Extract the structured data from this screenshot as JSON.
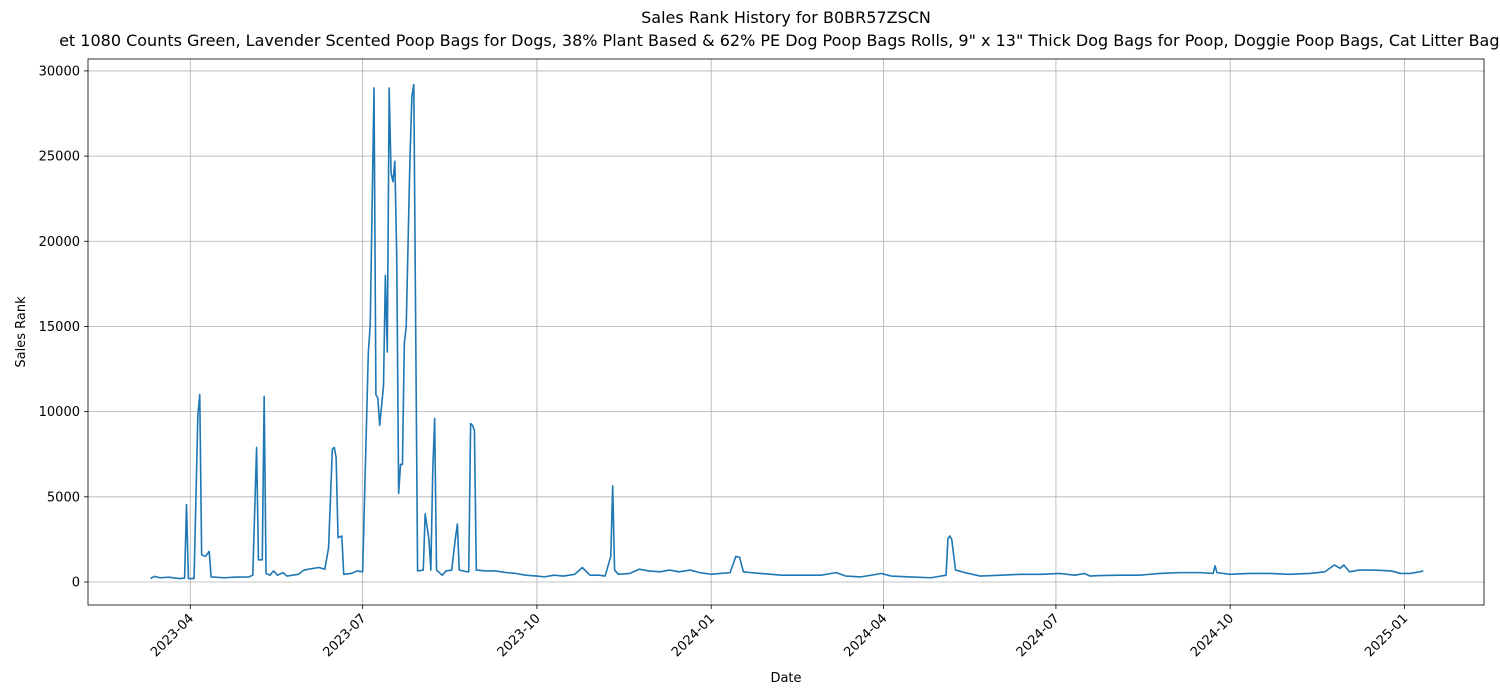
{
  "chart_data": {
    "type": "line",
    "title": "Sales Rank History for B0BR57ZSCN",
    "subtitle": "et 1080 Counts Green, Lavender Scented Poop Bags for Dogs, 38% Plant Based & 62% PE Dog Poop Bags Rolls, 9\" x 13\" Thick Dog Bags for Poop, Doggie Poop Bags, Cat Litter Bags,",
    "x_label": "Date",
    "y_label": "Sales Rank",
    "x": [
      "2023-03-11",
      "2023-03-13",
      "2023-03-16",
      "2023-03-21",
      "2023-03-26",
      "2023-03-29",
      "2023-03-30",
      "2023-03-31",
      "2023-04-03",
      "2023-04-05",
      "2023-04-06",
      "2023-04-07",
      "2023-04-09",
      "2023-04-11",
      "2023-04-12",
      "2023-04-19",
      "2023-04-24",
      "2023-05-02",
      "2023-05-04",
      "2023-05-06",
      "2023-05-07",
      "2023-05-09",
      "2023-05-10",
      "2023-05-11",
      "2023-05-13",
      "2023-05-15",
      "2023-05-17",
      "2023-05-20",
      "2023-05-22",
      "2023-05-28",
      "2023-05-31",
      "2023-06-05",
      "2023-06-08",
      "2023-06-11",
      "2023-06-13",
      "2023-06-15",
      "2023-06-16",
      "2023-06-17",
      "2023-06-18",
      "2023-06-20",
      "2023-06-21",
      "2023-06-25",
      "2023-06-28",
      "2023-07-01",
      "2023-07-04",
      "2023-07-05",
      "2023-07-07",
      "2023-07-08",
      "2023-07-09",
      "2023-07-10",
      "2023-07-12",
      "2023-07-13",
      "2023-07-14",
      "2023-07-15",
      "2023-07-16",
      "2023-07-17",
      "2023-07-18",
      "2023-07-19",
      "2023-07-20",
      "2023-07-21",
      "2023-07-22",
      "2023-07-23",
      "2023-07-24",
      "2023-07-26",
      "2023-07-27",
      "2023-07-28",
      "2023-07-30",
      "2023-08-02",
      "2023-08-03",
      "2023-08-05",
      "2023-08-06",
      "2023-08-07",
      "2023-08-08",
      "2023-08-09",
      "2023-08-12",
      "2023-08-14",
      "2023-08-17",
      "2023-08-19",
      "2023-08-20",
      "2023-08-21",
      "2023-08-25",
      "2023-08-26",
      "2023-08-27",
      "2023-08-28",
      "2023-08-29",
      "2023-08-30",
      "2023-09-04",
      "2023-09-09",
      "2023-09-15",
      "2023-09-20",
      "2023-09-25",
      "2023-10-01",
      "2023-10-05",
      "2023-10-10",
      "2023-10-15",
      "2023-10-21",
      "2023-10-25",
      "2023-10-29",
      "2023-11-03",
      "2023-11-06",
      "2023-11-09",
      "2023-11-10",
      "2023-11-11",
      "2023-11-13",
      "2023-11-19",
      "2023-11-24",
      "2023-11-29",
      "2023-12-05",
      "2023-12-10",
      "2023-12-15",
      "2023-12-21",
      "2023-12-26",
      "2024-01-01",
      "2024-01-06",
      "2024-01-11",
      "2024-01-14",
      "2024-01-16",
      "2024-01-18",
      "2024-01-22",
      "2024-01-27",
      "2024-02-02",
      "2024-02-07",
      "2024-02-17",
      "2024-02-28",
      "2024-03-07",
      "2024-03-12",
      "2024-03-20",
      "2024-03-31",
      "2024-04-05",
      "2024-04-15",
      "2024-04-26",
      "2024-05-04",
      "2024-05-05",
      "2024-05-06",
      "2024-05-07",
      "2024-05-09",
      "2024-05-14",
      "2024-05-22",
      "2024-06-02",
      "2024-06-12",
      "2024-06-23",
      "2024-07-03",
      "2024-07-11",
      "2024-07-16",
      "2024-07-19",
      "2024-07-24",
      "2024-08-04",
      "2024-08-14",
      "2024-08-25",
      "2024-09-04",
      "2024-09-15",
      "2024-09-22",
      "2024-09-23",
      "2024-09-24",
      "2024-10-01",
      "2024-10-11",
      "2024-10-22",
      "2024-11-01",
      "2024-11-12",
      "2024-11-20",
      "2024-11-25",
      "2024-11-28",
      "2024-11-30",
      "2024-12-03",
      "2024-12-08",
      "2024-12-16",
      "2024-12-25",
      "2024-12-30",
      "2025-01-04",
      "2025-01-09",
      "2025-01-11"
    ],
    "series": [
      {
        "name": "Sales Rank",
        "color": "#1f77b4",
        "values": [
          200,
          330,
          250,
          280,
          200,
          230,
          4550,
          200,
          200,
          9800,
          11000,
          1600,
          1500,
          1800,
          300,
          250,
          280,
          300,
          400,
          7900,
          1300,
          1300,
          10900,
          500,
          400,
          650,
          400,
          550,
          350,
          450,
          700,
          800,
          850,
          750,
          2000,
          7800,
          7900,
          7300,
          2600,
          2700,
          450,
          500,
          650,
          600,
          13500,
          15100,
          29000,
          11000,
          10800,
          9200,
          11500,
          18000,
          13500,
          29000,
          24000,
          23500,
          24700,
          19000,
          5200,
          6900,
          6900,
          14000,
          15000,
          25000,
          28500,
          29200,
          650,
          700,
          4000,
          2500,
          700,
          6500,
          9600,
          700,
          400,
          650,
          700,
          2600,
          3400,
          700,
          600,
          600,
          9300,
          9200,
          8900,
          700,
          650,
          650,
          550,
          500,
          400,
          350,
          300,
          400,
          350,
          450,
          850,
          400,
          400,
          350,
          1500,
          5650,
          700,
          450,
          500,
          750,
          650,
          600,
          700,
          600,
          700,
          550,
          450,
          500,
          550,
          1500,
          1450,
          600,
          550,
          500,
          450,
          400,
          400,
          400,
          550,
          350,
          300,
          500,
          350,
          300,
          250,
          400,
          2550,
          2700,
          2500,
          700,
          550,
          350,
          400,
          450,
          450,
          500,
          400,
          500,
          350,
          380,
          400,
          400,
          500,
          550,
          550,
          500,
          950,
          550,
          450,
          500,
          500,
          450,
          500,
          600,
          1000,
          800,
          1000,
          600,
          700,
          700,
          650,
          500,
          500,
          600,
          650
        ]
      }
    ],
    "xlim": [
      "2023-02-06",
      "2025-02-12"
    ],
    "xticks": [
      "2023-04",
      "2023-07",
      "2023-10",
      "2024-01",
      "2024-04",
      "2024-07",
      "2024-10",
      "2025-01"
    ],
    "ylim": [
      -1350,
      30700
    ],
    "yticks": [
      0,
      5000,
      10000,
      15000,
      20000,
      25000,
      30000
    ],
    "grid": true
  }
}
